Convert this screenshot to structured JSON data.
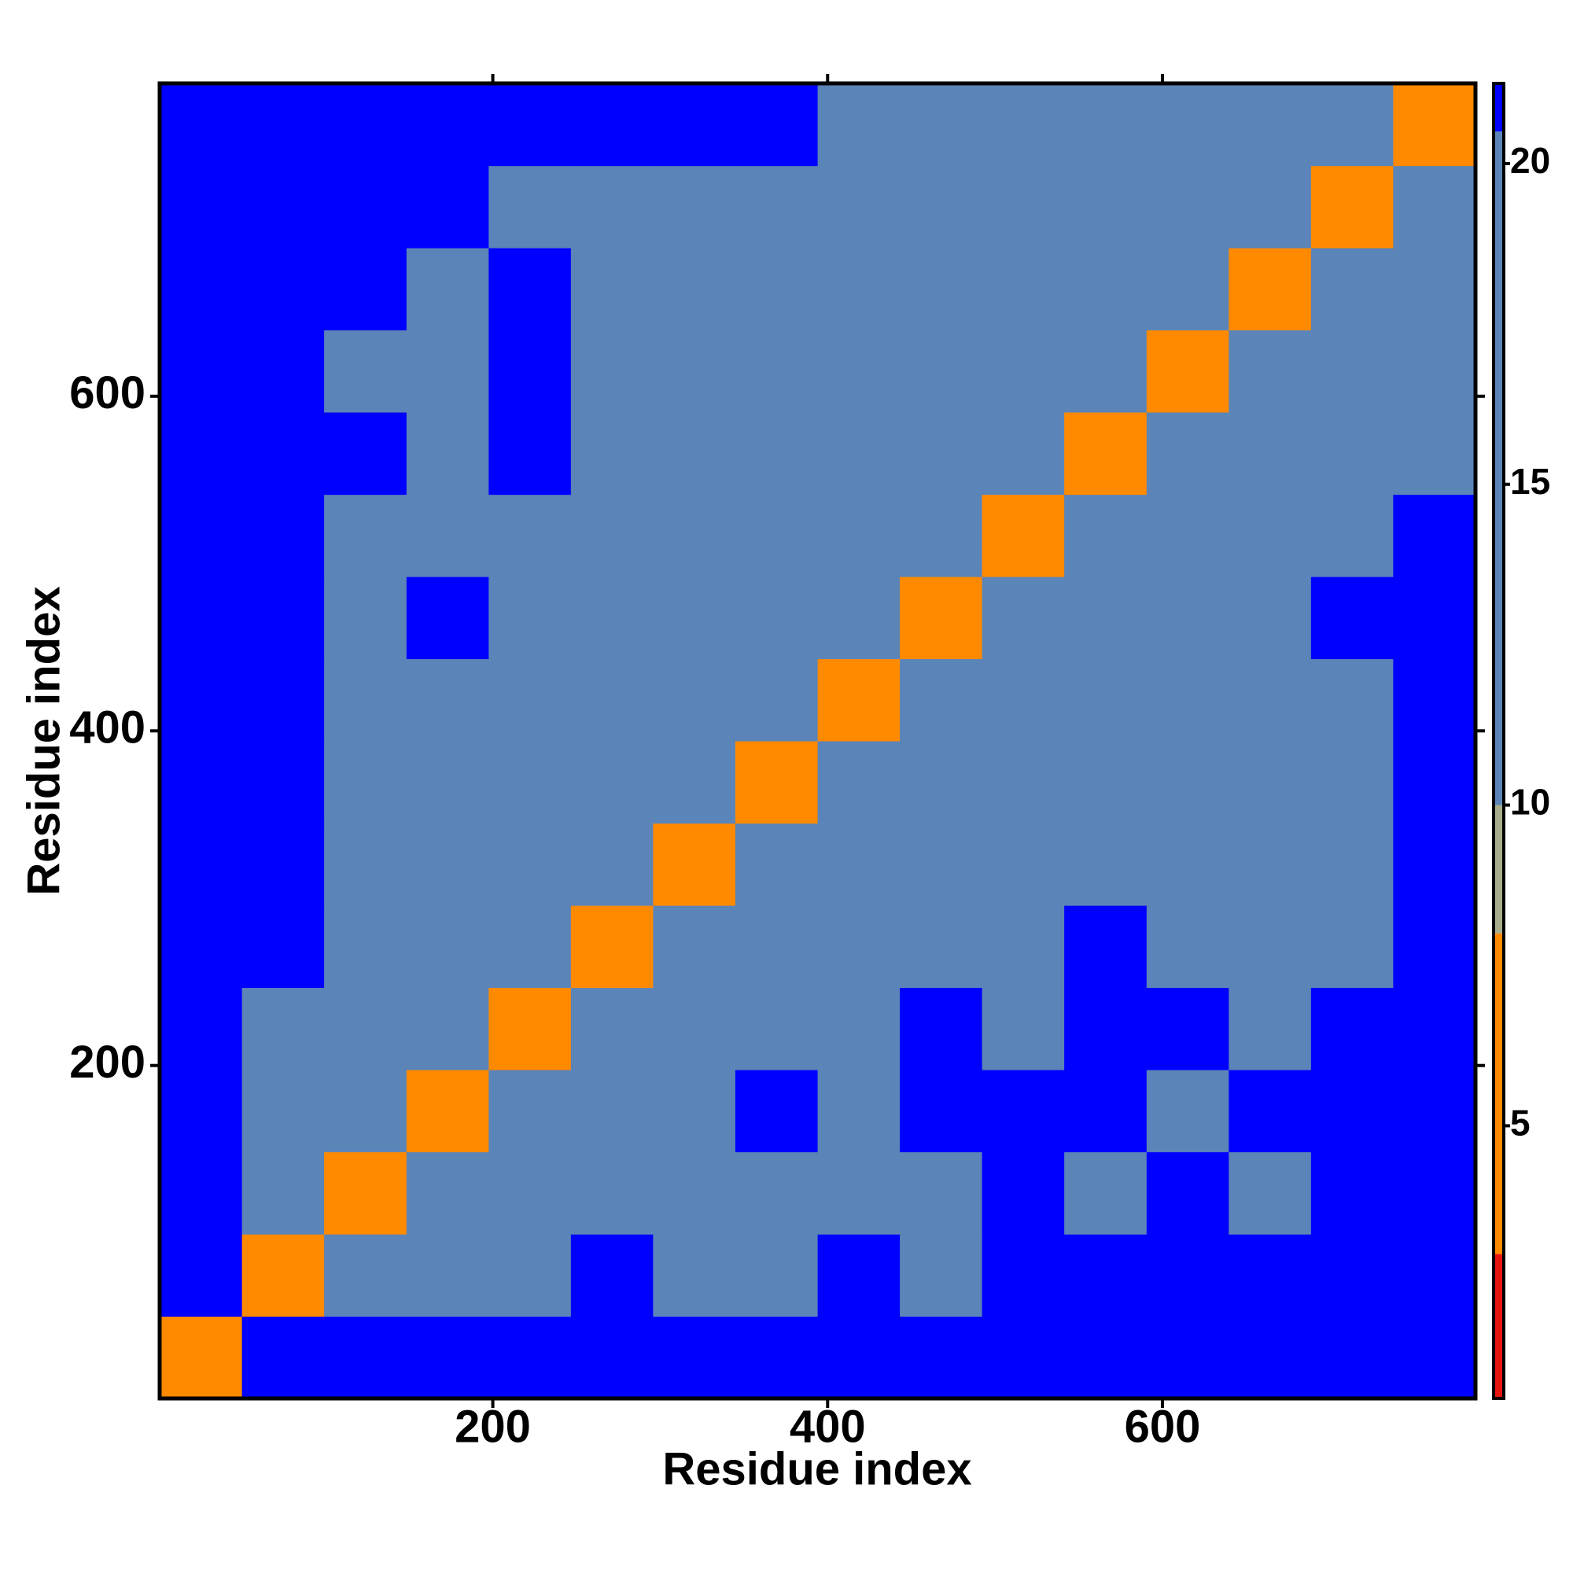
{
  "chart_data": {
    "type": "heatmap",
    "x_label": "Residue index",
    "y_label": "Residue index",
    "x": [
      25.6,
      74.7,
      123.8,
      173.0,
      222.1,
      271.2,
      320.3,
      369.4,
      418.6,
      467.7,
      516.8,
      565.9,
      615.1,
      664.2,
      713.3,
      762.4
    ],
    "y": [
      25.6,
      74.7,
      123.8,
      173.0,
      222.1,
      271.2,
      320.3,
      369.4,
      418.6,
      467.7,
      516.8,
      565.9,
      615.1,
      664.2,
      713.3,
      762.4
    ],
    "z": [
      [
        6,
        21,
        21,
        21,
        21,
        21,
        21,
        21,
        21,
        21,
        21,
        21,
        21,
        21,
        21,
        21
      ],
      [
        21,
        6,
        15,
        15,
        15,
        21,
        20,
        20,
        21,
        20,
        21,
        21,
        21,
        21,
        21,
        21
      ],
      [
        21,
        15,
        6,
        15,
        15,
        20,
        20,
        20,
        20,
        20,
        21,
        20,
        21,
        20,
        21,
        21
      ],
      [
        21,
        15,
        15,
        6,
        15,
        20,
        20,
        21,
        20,
        21,
        21,
        21,
        20,
        21,
        21,
        21
      ],
      [
        21,
        15,
        15,
        15,
        6,
        16,
        20,
        20,
        20,
        21,
        20,
        21,
        21,
        20,
        21,
        21
      ],
      [
        21,
        21,
        20,
        20,
        16,
        6,
        16,
        16,
        20,
        20,
        20,
        21,
        20,
        16,
        20,
        21
      ],
      [
        21,
        21,
        20,
        20,
        20,
        16,
        6,
        16,
        16,
        16,
        17,
        20,
        20,
        20,
        20,
        21
      ],
      [
        21,
        21,
        20,
        20,
        20,
        16,
        16,
        6,
        16,
        16,
        16,
        17,
        20,
        16,
        16,
        21
      ],
      [
        21,
        21,
        20,
        20,
        20,
        16,
        16,
        16,
        6,
        16,
        17,
        17,
        20,
        16,
        17,
        21
      ],
      [
        21,
        21,
        20,
        21,
        20,
        17,
        16,
        16,
        16,
        6,
        16,
        17,
        20,
        20,
        21,
        21
      ],
      [
        21,
        21,
        20,
        20,
        20,
        20,
        16,
        16,
        16,
        16,
        6,
        16,
        16,
        16,
        16,
        21
      ],
      [
        21,
        21,
        21,
        20,
        21,
        20,
        16,
        16,
        17,
        17,
        16,
        6,
        16,
        16,
        16,
        16
      ],
      [
        21,
        21,
        20,
        20,
        21,
        20,
        17,
        20,
        17,
        16,
        16,
        16,
        6,
        16,
        16,
        16
      ],
      [
        21,
        21,
        21,
        20,
        21,
        20,
        17,
        16,
        17,
        17,
        16,
        16,
        16,
        6,
        16,
        16
      ],
      [
        21,
        21,
        21,
        21,
        20,
        20,
        17,
        16,
        17,
        17,
        17,
        16,
        16,
        16,
        6,
        16
      ],
      [
        21,
        21,
        21,
        21,
        21,
        21,
        21,
        21,
        20,
        20,
        16,
        16,
        16,
        16,
        16,
        6
      ]
    ],
    "xlim": [
      1,
      787
    ],
    "ylim": [
      1,
      787
    ],
    "xticks": [
      200,
      400,
      600
    ],
    "yticks": [
      200,
      400,
      600
    ],
    "zlim": [
      0.75,
      21.25
    ],
    "zticks": [
      5,
      10,
      15,
      20
    ],
    "color_bands": [
      {
        "max": 3,
        "color": "#e8150f"
      },
      {
        "max": 8,
        "color": "#ff8a00"
      },
      {
        "max": 10,
        "color": "#a7ad8a"
      },
      {
        "max": 20.5,
        "color": "#5b84b8"
      },
      {
        "max": 21.25,
        "color": "#0000ff"
      }
    ]
  }
}
